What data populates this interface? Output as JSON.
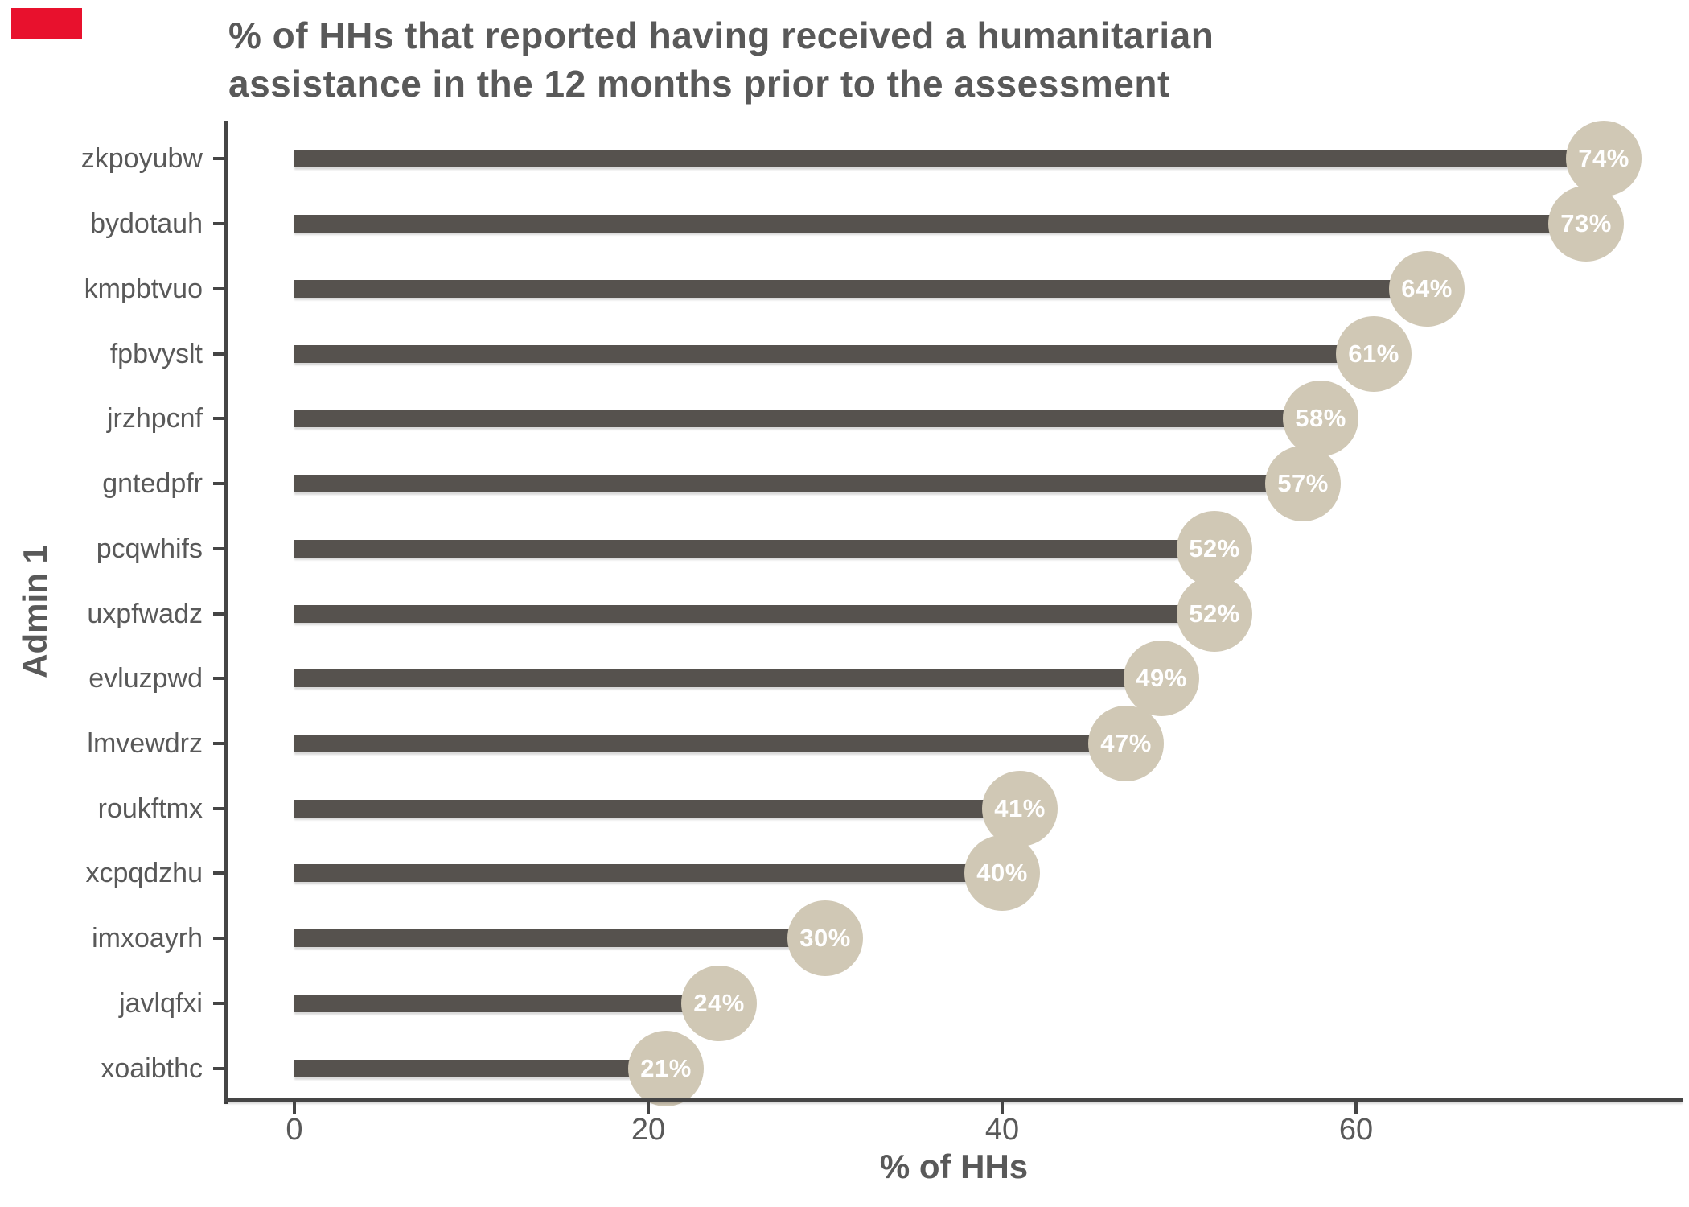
{
  "marker": {
    "color": "#e8112d"
  },
  "chart_data": {
    "type": "bar",
    "orientation": "horizontal",
    "style": "lollipop",
    "title_lines": [
      "% of HHs that reported having received a humanitarian",
      "assistance in the 12 months prior to the assessment"
    ],
    "title": "% of HHs that reported having received a humanitarian assistance in the 12 months prior to the assessment",
    "xlabel": "% of HHs",
    "ylabel": "Admin 1",
    "categories": [
      "zkpoyubw",
      "bydotauh",
      "kmpbtvuo",
      "fpbvyslt",
      "jrzhpcnf",
      "gntedpfr",
      "pcqwhifs",
      "uxpfwadz",
      "evluzpwd",
      "lmvewdrz",
      "roukftmx",
      "xcpqdzhu",
      "imxoayrh",
      "javlqfxi",
      "xoaibthc"
    ],
    "values": [
      74,
      73,
      64,
      61,
      58,
      57,
      52,
      52,
      49,
      47,
      41,
      40,
      30,
      24,
      21
    ],
    "value_labels": [
      "74%",
      "73%",
      "64%",
      "61%",
      "58%",
      "57%",
      "52%",
      "52%",
      "49%",
      "47%",
      "41%",
      "40%",
      "30%",
      "24%",
      "21%"
    ],
    "xticks": [
      "0",
      "20",
      "40",
      "60"
    ],
    "xtick_values": [
      0,
      20,
      40,
      60
    ],
    "xlim": [
      0,
      78
    ],
    "grid": false,
    "legend": false,
    "colors": {
      "bar": "#56524e",
      "circle": "#d0c8b5",
      "circle_text": "#ffffff",
      "axis": "#454545",
      "text": "#595959",
      "title": "#595959"
    }
  }
}
